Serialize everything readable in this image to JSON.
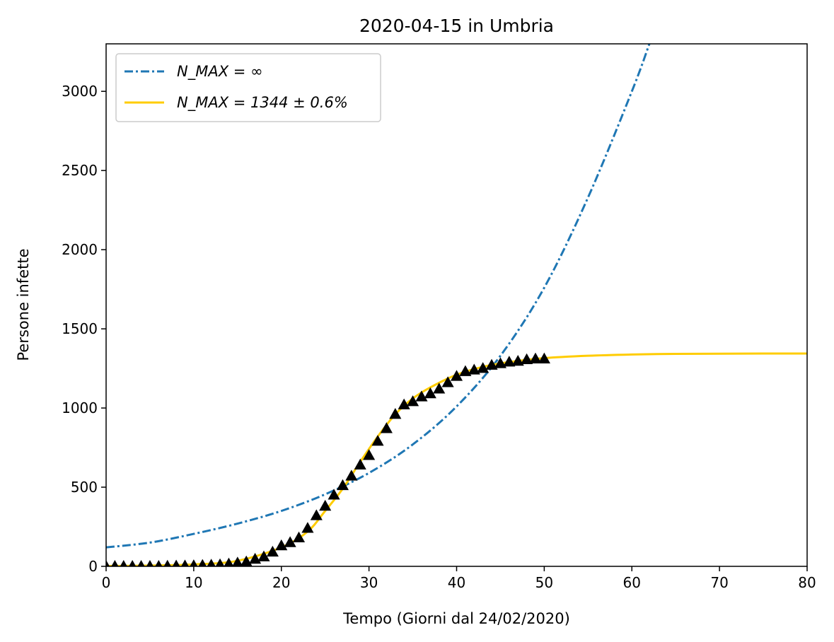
{
  "chart_data": {
    "type": "line",
    "title": "2020-04-15 in Umbria",
    "xlabel": "Tempo (Giorni dal 24/02/2020)",
    "ylabel": "Persone infette",
    "xlim": [
      0,
      80
    ],
    "ylim": [
      0,
      3300
    ],
    "xticks": [
      0,
      10,
      20,
      30,
      40,
      50,
      60,
      70,
      80
    ],
    "yticks": [
      0,
      500,
      1000,
      1500,
      2000,
      2500,
      3000
    ],
    "grid": false,
    "legend": {
      "placement": "top-left",
      "entries": [
        {
          "label": "N_MAX = ∞",
          "color": "#1f77b4",
          "style": "dash-dot"
        },
        {
          "label": "N_MAX = 1344 ± 0.6%",
          "color": "#ffcc00",
          "style": "solid"
        }
      ]
    },
    "series": [
      {
        "label_ref": "legend.entries.0",
        "color": "#1f77b4",
        "style": "dash-dot",
        "kind": "exponential",
        "x": [
          0,
          5,
          10,
          15,
          20,
          25,
          30,
          35,
          40,
          45,
          50,
          55,
          60,
          62
        ],
        "values": [
          120,
          150,
          205,
          270,
          350,
          455,
          590,
          770,
          1010,
          1330,
          1760,
          2330,
          3000,
          3300
        ]
      },
      {
        "label_ref": "legend.entries.1",
        "color": "#ffcc00",
        "style": "solid",
        "kind": "logistic",
        "x": [
          0,
          5,
          10,
          15,
          20,
          23,
          25,
          27,
          29,
          31,
          33,
          35,
          37,
          40,
          43,
          46,
          50,
          55,
          60,
          65,
          70,
          75,
          80
        ],
        "values": [
          2,
          5,
          12,
          35,
          120,
          220,
          350,
          490,
          660,
          820,
          960,
          1060,
          1130,
          1210,
          1260,
          1290,
          1315,
          1330,
          1338,
          1342,
          1343,
          1344,
          1344
        ]
      },
      {
        "color": "#000000",
        "marker": "triangle",
        "x": [
          0,
          1,
          2,
          3,
          4,
          5,
          6,
          7,
          8,
          9,
          10,
          11,
          12,
          13,
          14,
          15,
          16,
          17,
          18,
          19,
          20,
          21,
          22,
          23,
          24,
          25,
          26,
          27,
          28,
          29,
          30,
          31,
          32,
          33,
          34,
          35,
          36,
          37,
          38,
          39,
          40,
          41,
          42,
          43,
          44,
          45,
          46,
          47,
          48,
          49,
          50
        ],
        "values": [
          0,
          0,
          0,
          0,
          0,
          0,
          0,
          1,
          2,
          3,
          4,
          6,
          8,
          10,
          15,
          21,
          28,
          45,
          60,
          90,
          130,
          150,
          180,
          240,
          320,
          380,
          450,
          510,
          570,
          640,
          700,
          790,
          870,
          960,
          1020,
          1040,
          1070,
          1090,
          1120,
          1160,
          1200,
          1230,
          1240,
          1250,
          1270,
          1280,
          1290,
          1295,
          1305,
          1310,
          1310
        ]
      }
    ]
  }
}
